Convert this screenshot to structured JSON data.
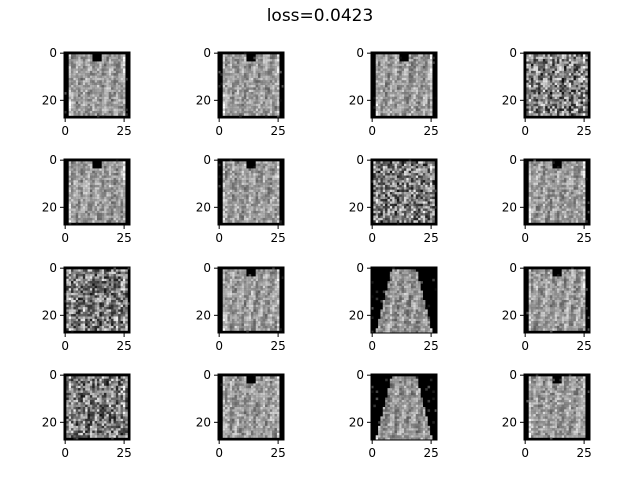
{
  "figure": {
    "title": "loss=0.0423"
  },
  "chart_data": {
    "type": "image-grid",
    "title": "loss=0.0423",
    "grid": {
      "rows": 4,
      "cols": 4
    },
    "image_size": [
      28,
      28
    ],
    "colormap": "gray",
    "x_ticks": [
      0,
      25
    ],
    "y_ticks": [
      0,
      20
    ],
    "panels": [
      {
        "kind": "long-sleeve"
      },
      {
        "kind": "long-sleeve"
      },
      {
        "kind": "long-sleeve"
      },
      {
        "kind": "noisy"
      },
      {
        "kind": "long-sleeve"
      },
      {
        "kind": "long-sleeve"
      },
      {
        "kind": "noisy"
      },
      {
        "kind": "long-sleeve"
      },
      {
        "kind": "noisy"
      },
      {
        "kind": "coat"
      },
      {
        "kind": "dress"
      },
      {
        "kind": "long-sleeve"
      },
      {
        "kind": "noisy"
      },
      {
        "kind": "long-sleeve"
      },
      {
        "kind": "dress"
      },
      {
        "kind": "long-sleeve"
      }
    ]
  }
}
